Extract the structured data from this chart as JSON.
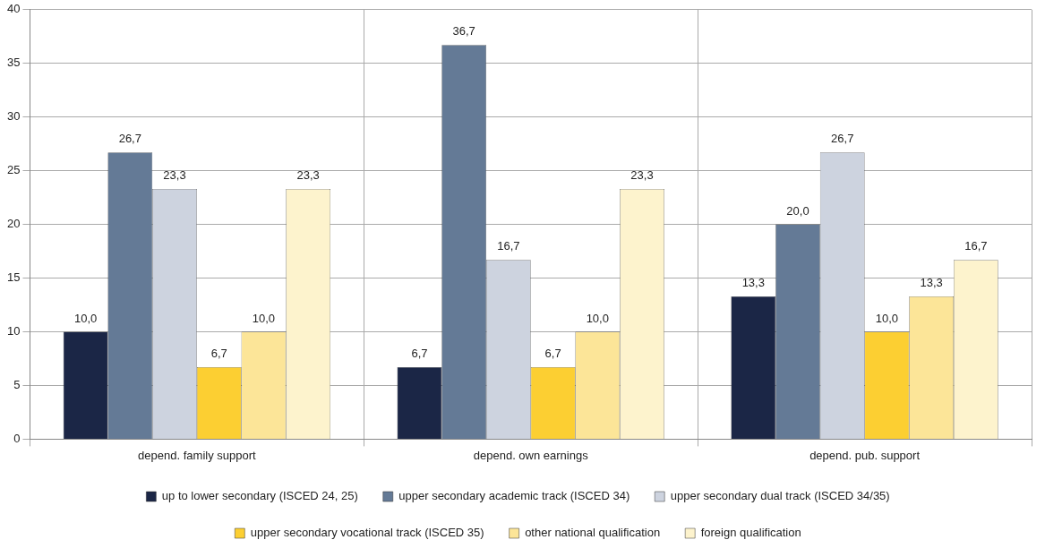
{
  "chart_data": {
    "type": "bar",
    "categories": [
      "depend. family support",
      "depend. own earnings",
      "depend. pub. support"
    ],
    "series": [
      {
        "name": "up to lower secondary (ISCED 24, 25)",
        "color": "#1b2646",
        "values": [
          10.0,
          6.7,
          13.3
        ],
        "value_labels": [
          "10,0",
          "6,7",
          "13,3"
        ]
      },
      {
        "name": "upper secondary academic track (ISCED 34)",
        "color": "#647a96",
        "values": [
          26.7,
          36.7,
          20.0
        ],
        "value_labels": [
          "26,7",
          "36,7",
          "20,0"
        ]
      },
      {
        "name": "upper secondary dual track (ISCED 34/35)",
        "color": "#cdd3df",
        "values": [
          23.3,
          16.7,
          26.7
        ],
        "value_labels": [
          "23,3",
          "16,7",
          "26,7"
        ]
      },
      {
        "name": "upper secondary vocational track (ISCED 35)",
        "color": "#fccf32",
        "values": [
          6.7,
          6.7,
          10.0
        ],
        "value_labels": [
          "6,7",
          "6,7",
          "10,0"
        ]
      },
      {
        "name": "other national qualification",
        "color": "#fce598",
        "values": [
          10.0,
          10.0,
          13.3
        ],
        "value_labels": [
          "10,0",
          "10,0",
          "13,3"
        ]
      },
      {
        "name": "foreign qualification",
        "color": "#fdf3cd",
        "values": [
          23.3,
          23.3,
          16.7
        ],
        "value_labels": [
          "23,3",
          "23,3",
          "16,7"
        ]
      }
    ],
    "ylim": [
      0,
      40
    ],
    "yticks": [
      0,
      5,
      10,
      15,
      20,
      25,
      30,
      35,
      40
    ],
    "grid": true,
    "legend": "bottom"
  }
}
